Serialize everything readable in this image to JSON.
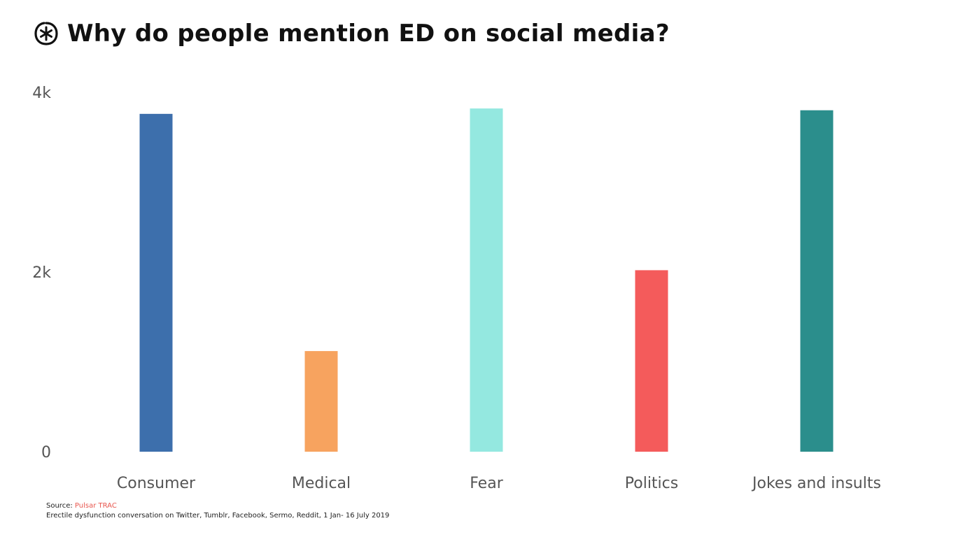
{
  "title": "Why do people mention ED on social media?",
  "logo_icon": "pulsar-asterisk-icon",
  "chart_data": {
    "type": "bar",
    "title": "Why do people mention ED on social media?",
    "categories": [
      "Consumer",
      "Medical",
      "Fear",
      "Politics",
      "Jokes and insults"
    ],
    "values": [
      3760,
      1120,
      3820,
      2020,
      3800
    ],
    "colors": [
      "#3d6fac",
      "#f7a35f",
      "#94e8e0",
      "#f45b5b",
      "#2b8e8c"
    ],
    "ylim": [
      0,
      4000
    ],
    "yticks": [
      0,
      2000,
      4000
    ],
    "ytick_labels": [
      "0",
      "2k",
      "4k"
    ],
    "xlabel": "",
    "ylabel": "",
    "grid": false,
    "legend": "none"
  },
  "source": {
    "label": "Source: ",
    "name": "Pulsar TRAC",
    "description": "Erectile dysfunction conversation on Twitter, Tumblr, Facebook, Sermo, Reddit, 1 Jan- 16 July 2019"
  }
}
